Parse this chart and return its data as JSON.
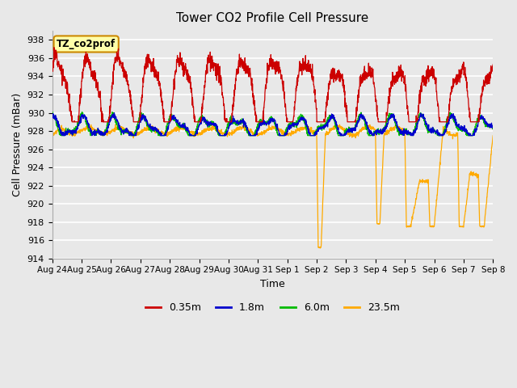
{
  "title": "Tower CO2 Profile Cell Pressure",
  "xlabel": "Time",
  "ylabel": "Cell Pressure (mBar)",
  "ylim": [
    914,
    939
  ],
  "yticks": [
    914,
    916,
    918,
    920,
    922,
    924,
    926,
    928,
    930,
    932,
    934,
    936,
    938
  ],
  "date_labels": [
    "Aug 24",
    "Aug 25",
    "Aug 26",
    "Aug 27",
    "Aug 28",
    "Aug 29",
    "Aug 30",
    "Aug 31",
    "Sep 1",
    "Sep 2",
    "Sep 3",
    "Sep 4",
    "Sep 5",
    "Sep 6",
    "Sep 7",
    "Sep 8"
  ],
  "legend_entries": [
    "0.35m",
    "1.8m",
    "6.0m",
    "23.5m"
  ],
  "line_colors": [
    "#cc0000",
    "#0000cc",
    "#00bb00",
    "#ffaa00"
  ],
  "annotation_text": "TZ_co2prof",
  "annotation_facecolor": "#ffffaa",
  "annotation_edgecolor": "#cc8800",
  "fig_facecolor": "#e8e8e8",
  "axes_facecolor": "#e8e8e8",
  "grid_color": "#ffffff",
  "n_pts": 2160,
  "n_days": 15,
  "seed": 12
}
